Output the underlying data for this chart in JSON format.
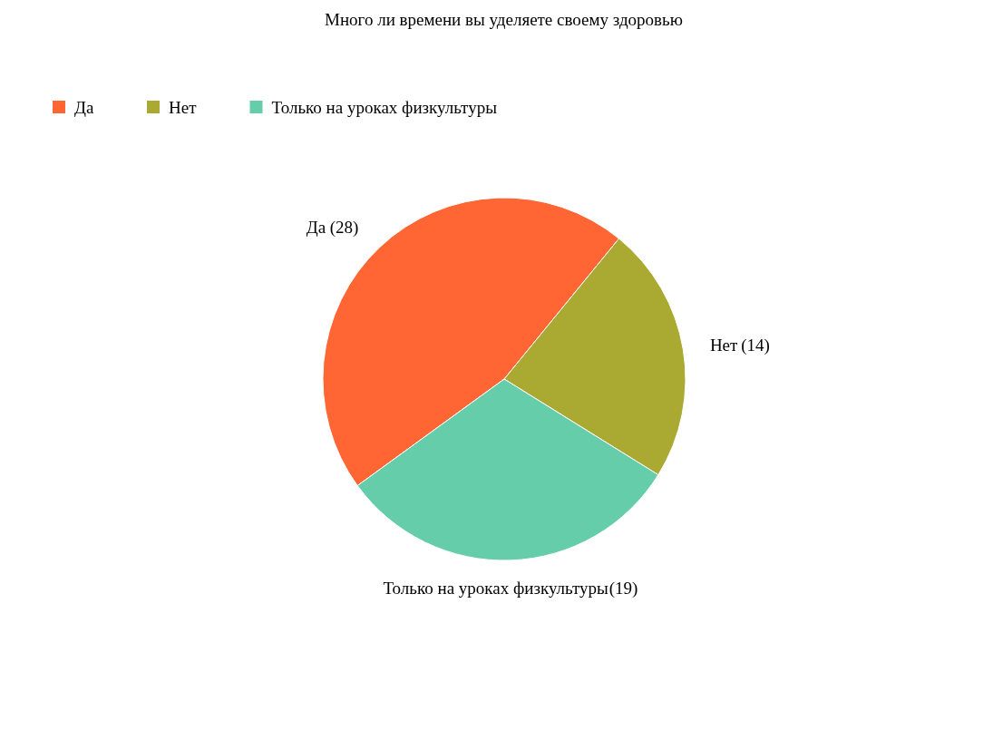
{
  "chart_data": {
    "type": "pie",
    "title": "Много ли времени вы уделяете своему здоровью",
    "categories": [
      "Да",
      "Нет",
      "Только на уроках физкультуры"
    ],
    "values": [
      28,
      14,
      19
    ],
    "colors": [
      "#ff6633",
      "#aaaa33",
      "#66cdaa"
    ],
    "value_labels": [
      "(28)",
      "(14)",
      "(19)"
    ],
    "legend": "top left"
  }
}
